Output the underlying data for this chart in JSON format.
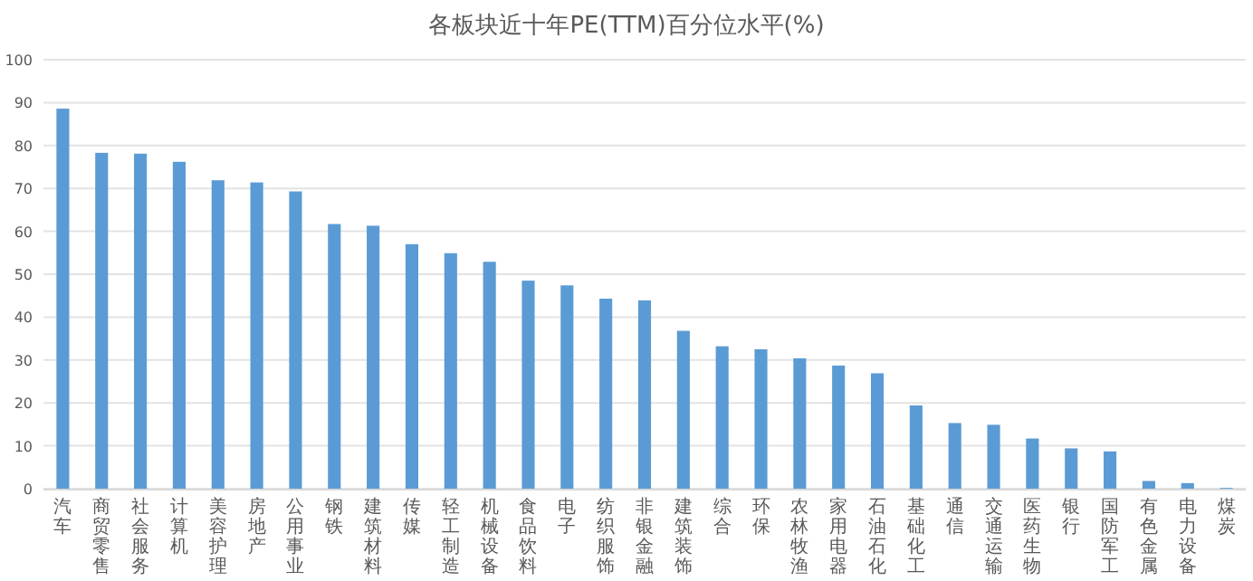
{
  "chart_data": {
    "type": "bar",
    "title": "各板块近十年PE(TTM)百分位水平(%)",
    "categories": [
      "汽车",
      "商贸零售",
      "社会服务",
      "计算机",
      "美容护理",
      "房地产",
      "公用事业",
      "钢铁",
      "建筑材料",
      "传媒",
      "轻工制造",
      "机械设备",
      "食品饮料",
      "电子",
      "纺织服饰",
      "非银金融",
      "建筑装饰",
      "综合",
      "环保",
      "农林牧渔",
      "家用电器",
      "石油石化",
      "基础化工",
      "通信",
      "交通运输",
      "医药生物",
      "银行",
      "国防军工",
      "有色金属",
      "电力设备",
      "煤炭"
    ],
    "values": [
      88.6,
      78.3,
      78.1,
      76.2,
      71.9,
      71.4,
      69.3,
      61.7,
      61.3,
      57.0,
      54.9,
      52.9,
      48.5,
      47.4,
      44.3,
      43.9,
      36.8,
      33.2,
      32.5,
      30.4,
      28.7,
      26.9,
      19.4,
      15.3,
      14.9,
      11.7,
      9.4,
      8.7,
      1.8,
      1.3,
      0.2
    ],
    "color": "#5b9bd5",
    "ylim": [
      0,
      100
    ],
    "yticks": [
      0,
      10,
      20,
      30,
      40,
      50,
      60,
      70,
      80,
      90,
      100
    ],
    "grid": "y"
  }
}
